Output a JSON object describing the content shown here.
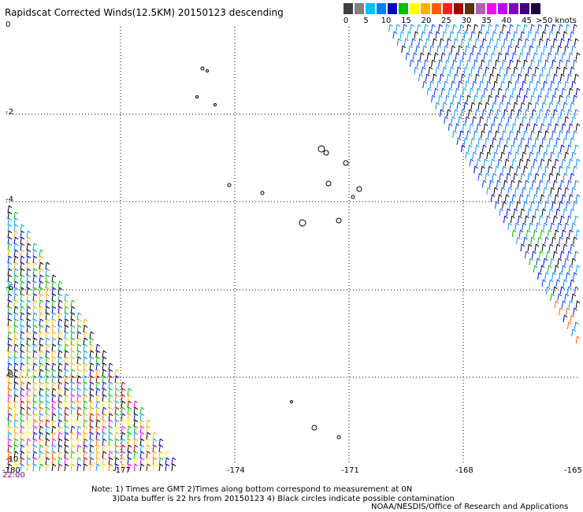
{
  "title": "Rapidscat Corrected Winds(12.5KM) 20150123 descending",
  "colorbar": {
    "colors": [
      "#404040",
      "#808080",
      "#00c0ff",
      "#0080ff",
      "#0000c0",
      "#00c000",
      "#ffff00",
      "#ffb000",
      "#ff6000",
      "#ff2020",
      "#a00000",
      "#603010",
      "#b060b0",
      "#ff00ff",
      "#c000ff",
      "#8000c0",
      "#400080",
      "#200040"
    ],
    "labels": [
      "0",
      "5",
      "10",
      "15",
      "20",
      "25",
      "30",
      "35",
      "40",
      "45",
      ">50 knots"
    ]
  },
  "axes": {
    "x_ticks": [
      "-180",
      "-177",
      "-174",
      "-171",
      "-168",
      "-165"
    ],
    "y_ticks": [
      "0",
      "-2",
      "-4",
      "-6",
      "-8",
      "-10"
    ]
  },
  "time_label": "22:00",
  "note": {
    "line1": "Note: 1) Times are GMT 2)Times along bottom correspond to measurement at 0N",
    "line2": "3)Data buffer is 22 hrs from 20150123 4) Black circles indicate possible contamination"
  },
  "credit": "NOAA/NESDIS/Office of Research and Applications"
}
